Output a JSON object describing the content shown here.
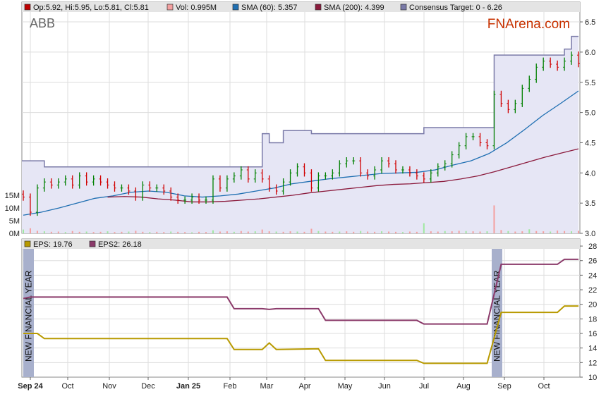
{
  "chart_data": [
    {
      "type": "line",
      "title": "ABB",
      "watermark": "FNArena.com",
      "legend": {
        "ohlc": "Op:5.92, Hi:5.95, Lo:5.81, Cl:5.81",
        "vol": "Vol: 0.995M",
        "sma60": "SMA (60): 5.357",
        "sma200": "SMA (200): 4.399",
        "target": "Consensus Target: 0 - 6.26"
      },
      "colors": {
        "up": "#008000",
        "down": "#d00000",
        "ohlc": "#c00000",
        "vol": "#f4a0a0",
        "sma60": "#1f6fb2",
        "sma200": "#8b1a3c",
        "target": "#7a7aa8",
        "target_fill": "#e6e6f5"
      },
      "ylim": [
        3.0,
        6.5
      ],
      "yticks": [
        "3.0",
        "3.5",
        "4.0",
        "4.5",
        "5.0",
        "5.5",
        "6.0",
        "6.5"
      ],
      "vol_ticks": [
        "0M",
        "5M",
        "10M",
        "15M"
      ],
      "close": [
        3.6,
        3.35,
        3.75,
        3.85,
        3.8,
        3.85,
        3.9,
        3.8,
        3.95,
        3.85,
        3.9,
        3.85,
        3.8,
        3.75,
        3.75,
        3.7,
        3.6,
        3.8,
        3.75,
        3.75,
        3.7,
        3.6,
        3.55,
        3.55,
        3.6,
        3.55,
        3.55,
        3.9,
        3.75,
        3.9,
        3.95,
        4.05,
        3.9,
        4.0,
        3.9,
        3.75,
        3.7,
        3.85,
        4.0,
        4.1,
        4.0,
        3.75,
        3.95,
        3.95,
        4.0,
        4.15,
        4.2,
        4.2,
        4.0,
        3.95,
        4.05,
        4.2,
        4.15,
        4.05,
        4.05,
        4.0,
        3.95,
        3.9,
        4.0,
        4.1,
        4.15,
        4.3,
        4.45,
        4.6,
        4.6,
        4.5,
        4.45,
        5.3,
        5.15,
        5.05,
        5.15,
        5.4,
        5.55,
        5.75,
        5.85,
        5.8,
        5.75,
        5.85,
        5.95,
        5.81
      ],
      "volume_m": [
        1.5,
        2,
        1,
        0.8,
        0.6,
        0.7,
        0.5,
        0.9,
        0.6,
        0.7,
        0.5,
        0.6,
        0.8,
        0.5,
        0.6,
        0.7,
        1,
        0.6,
        0.5,
        0.6,
        0.5,
        0.7,
        0.6,
        0.5,
        0.4,
        0.6,
        0.5,
        1.2,
        0.7,
        0.8,
        0.6,
        0.9,
        0.7,
        0.8,
        1.5,
        0.8,
        0.7,
        0.6,
        0.8,
        0.7,
        0.6,
        1.8,
        0.9,
        0.7,
        0.6,
        0.7,
        0.8,
        0.6,
        0.9,
        0.7,
        0.6,
        0.8,
        0.7,
        0.6,
        0.5,
        0.7,
        0.6,
        4,
        0.8,
        0.7,
        0.9,
        0.8,
        1,
        0.9,
        0.8,
        0.7,
        0.8,
        11,
        1.3,
        0.9,
        0.7,
        0.8,
        1.6,
        0.9,
        0.8,
        0.7,
        1.1,
        0.9,
        0.8,
        0.995
      ],
      "sma60": [
        3.3,
        3.35,
        3.42,
        3.5,
        3.58,
        3.62,
        3.68,
        3.7,
        3.68,
        3.62,
        3.6,
        3.62,
        3.65,
        3.7,
        3.75,
        3.82,
        3.86,
        3.9,
        3.93,
        3.96,
        3.99,
        4.0,
        4.01,
        4.05,
        4.13,
        4.2,
        4.32,
        4.5,
        4.72,
        4.95,
        5.15,
        5.357
      ],
      "sma200_start_index": 12,
      "sma200": [
        3.6,
        3.61,
        3.6,
        3.57,
        3.55,
        3.52,
        3.52,
        3.53,
        3.55,
        3.57,
        3.6,
        3.63,
        3.67,
        3.7,
        3.73,
        3.76,
        3.79,
        3.81,
        3.82,
        3.84,
        3.86,
        3.9,
        3.95,
        4.02,
        4.1,
        4.18,
        4.26,
        4.33,
        4.399
      ],
      "target_steps": [
        [
          0,
          4.2
        ],
        [
          3,
          4.1
        ],
        [
          34,
          4.65
        ],
        [
          35,
          4.5
        ],
        [
          37,
          4.7
        ],
        [
          41,
          4.65
        ],
        [
          57,
          4.75
        ],
        [
          67,
          5.95
        ],
        [
          77,
          6.05
        ],
        [
          78,
          6.26
        ],
        [
          79,
          6.26
        ]
      ]
    },
    {
      "type": "line",
      "legend": {
        "eps": "EPS: 19.76",
        "eps2": "EPS2: 26.18"
      },
      "colors": {
        "eps": "#b89a00",
        "eps2": "#8b3a6a",
        "band": "#a8b0cc"
      },
      "ylim": [
        10,
        28
      ],
      "yticks": [
        "10",
        "12",
        "14",
        "16",
        "18",
        "20",
        "22",
        "24",
        "26",
        "28"
      ],
      "annotation": "NEW FINANCIAL YEAR",
      "annotation_months": [
        "Sep 24",
        "Sep"
      ],
      "eps": [
        [
          0,
          16
        ],
        [
          2,
          16
        ],
        [
          3,
          15.3
        ],
        [
          29,
          15.3
        ],
        [
          30,
          13.8
        ],
        [
          34,
          13.8
        ],
        [
          35,
          14.7
        ],
        [
          36,
          13.8
        ],
        [
          42,
          13.9
        ],
        [
          43,
          12.3
        ],
        [
          56,
          12.3
        ],
        [
          57,
          11.9
        ],
        [
          66,
          11.9
        ],
        [
          68,
          18.9
        ],
        [
          76,
          18.9
        ],
        [
          77,
          19.76
        ],
        [
          79,
          19.76
        ]
      ],
      "eps2": [
        [
          0,
          20.8
        ],
        [
          1,
          21
        ],
        [
          29,
          21
        ],
        [
          30,
          19.4
        ],
        [
          34,
          19.4
        ],
        [
          35,
          19.3
        ],
        [
          36,
          19.4
        ],
        [
          42,
          19.4
        ],
        [
          43,
          17.8
        ],
        [
          56,
          17.8
        ],
        [
          57,
          17.3
        ],
        [
          66,
          17.3
        ],
        [
          68,
          25.5
        ],
        [
          76,
          25.5
        ],
        [
          77,
          26.18
        ],
        [
          79,
          26.18
        ]
      ]
    }
  ],
  "xaxis": {
    "months": [
      "Sep 24",
      "Oct",
      "Nov",
      "Dec",
      "Jan 25",
      "Feb",
      "Mar",
      "Apr",
      "May",
      "Jun",
      "Jul",
      "Aug",
      "Sep",
      "Oct"
    ],
    "bold": [
      "Sep 24",
      "Jan 25"
    ]
  }
}
